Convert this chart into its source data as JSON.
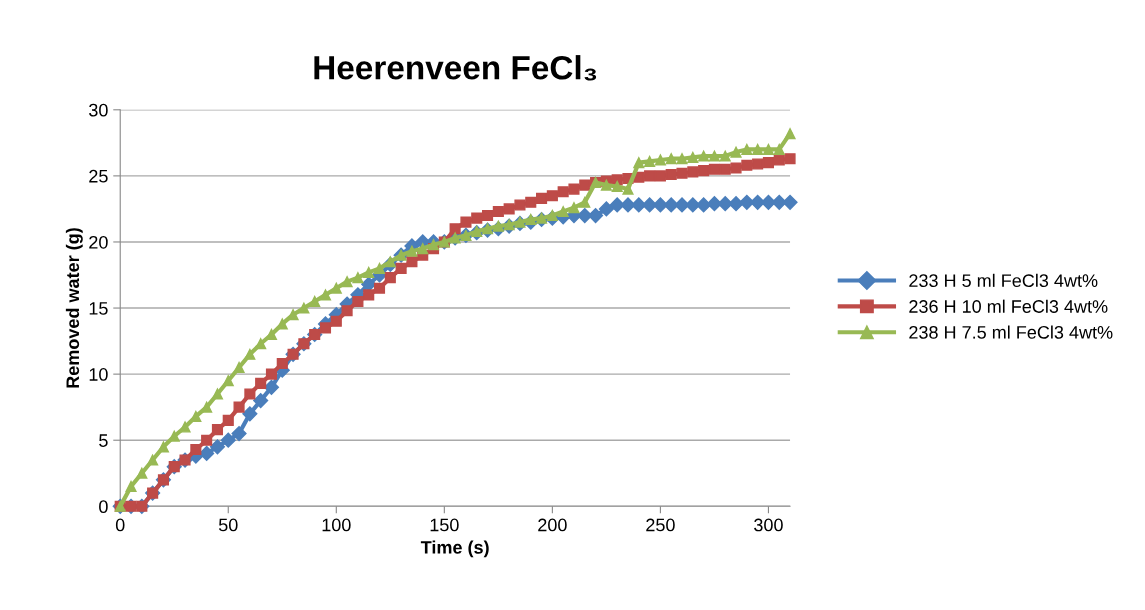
{
  "chart_data": {
    "type": "line",
    "title": "Heerenveen FeCl₃",
    "xlabel": "Time (s)",
    "ylabel": "Removed water (g)",
    "xlim": [
      0,
      310
    ],
    "xticks": [
      0,
      50,
      100,
      150,
      200,
      250,
      300
    ],
    "ylim": [
      0,
      30
    ],
    "yticks": [
      0,
      5,
      10,
      15,
      20,
      25,
      30
    ],
    "grid": "y",
    "legend": "right",
    "x": [
      0,
      5,
      10,
      15,
      20,
      25,
      30,
      35,
      40,
      45,
      50,
      55,
      60,
      65,
      70,
      75,
      80,
      85,
      90,
      95,
      100,
      105,
      110,
      115,
      120,
      125,
      130,
      135,
      140,
      145,
      150,
      155,
      160,
      165,
      170,
      175,
      180,
      185,
      190,
      195,
      200,
      205,
      210,
      215,
      220,
      225,
      230,
      235,
      240,
      245,
      250,
      255,
      260,
      265,
      270,
      275,
      280,
      285,
      290,
      295,
      300,
      305,
      310
    ],
    "series": [
      {
        "name": "233 H 5 ml FeCl3 4wt%",
        "color": "#4a7ebb",
        "marker": "diamond",
        "values": [
          0,
          0,
          0,
          1,
          2,
          3,
          3.5,
          3.8,
          4,
          4.5,
          5,
          5.5,
          7,
          8,
          9,
          10.3,
          11.5,
          12.3,
          13,
          13.8,
          14.5,
          15.3,
          16,
          16.8,
          17.5,
          18.3,
          19,
          19.7,
          20,
          20,
          20,
          20.3,
          20.5,
          20.7,
          20.9,
          21,
          21.2,
          21.4,
          21.5,
          21.7,
          21.8,
          21.9,
          22,
          22,
          22,
          22.5,
          22.8,
          22.8,
          22.8,
          22.8,
          22.8,
          22.8,
          22.8,
          22.8,
          22.8,
          22.9,
          22.9,
          22.9,
          23,
          23,
          23,
          23,
          23
        ]
      },
      {
        "name": "236 H 10 ml FeCl3 4wt%",
        "color": "#be4b48",
        "marker": "square",
        "values": [
          0,
          0,
          0,
          1,
          2,
          3,
          3.5,
          4.3,
          5,
          5.8,
          6.5,
          7.5,
          8.5,
          9.3,
          10,
          10.8,
          11.5,
          12.3,
          13,
          13.5,
          14,
          14.8,
          15.5,
          16,
          16.5,
          17.3,
          18,
          18.5,
          19,
          19.5,
          20,
          21,
          21.5,
          21.8,
          22,
          22.3,
          22.5,
          22.8,
          23,
          23.3,
          23.5,
          23.8,
          24,
          24.3,
          24.5,
          24.6,
          24.7,
          24.8,
          24.9,
          25,
          25,
          25.1,
          25.2,
          25.3,
          25.4,
          25.5,
          25.5,
          25.6,
          25.8,
          25.9,
          26,
          26.2,
          26.3
        ]
      },
      {
        "name": "238 H 7.5 ml FeCl3 4wt%",
        "color": "#98b954",
        "marker": "triangle",
        "values": [
          0,
          1.5,
          2.5,
          3.5,
          4.5,
          5.3,
          6,
          6.8,
          7.5,
          8.5,
          9.5,
          10.5,
          11.5,
          12.3,
          13,
          13.8,
          14.5,
          15,
          15.5,
          16,
          16.5,
          17,
          17.3,
          17.7,
          18,
          18.5,
          19,
          19.3,
          19.5,
          19.8,
          20,
          20.3,
          20.5,
          20.8,
          21,
          21.2,
          21.3,
          21.5,
          21.7,
          21.8,
          22,
          22.3,
          22.6,
          23,
          24.5,
          24.3,
          24.2,
          24,
          26,
          26.1,
          26.2,
          26.3,
          26.3,
          26.4,
          26.5,
          26.5,
          26.5,
          26.8,
          27,
          27,
          27,
          27,
          28.2
        ]
      }
    ]
  }
}
